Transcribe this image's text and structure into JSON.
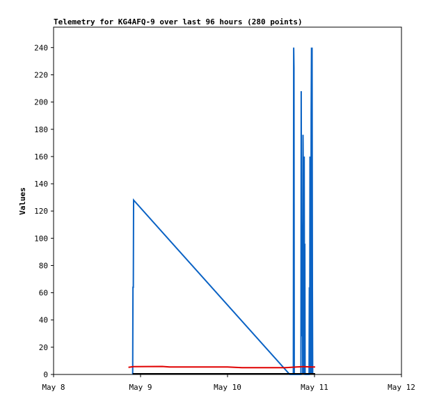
{
  "chart_data": {
    "type": "line",
    "title": "Telemetry for KG4AFQ-9 over last 96 hours (280 points)",
    "xlabel": "",
    "ylabel": "Values",
    "x_axis": {
      "type": "date",
      "range": [
        "2024-05-08T00:00",
        "2024-05-12T00:00"
      ],
      "ticks": [
        {
          "value": "2024-05-08T00:00",
          "label": "May 8"
        },
        {
          "value": "2024-05-09T00:00",
          "label": "May 9"
        },
        {
          "value": "2024-05-10T00:00",
          "label": "May 10"
        },
        {
          "value": "2024-05-11T00:00",
          "label": "May 11"
        },
        {
          "value": "2024-05-12T00:00",
          "label": "May 12"
        }
      ]
    },
    "ylim": [
      0,
      255
    ],
    "y_ticks": [
      0,
      20,
      40,
      60,
      80,
      100,
      120,
      140,
      160,
      180,
      200,
      220,
      240
    ],
    "grid": false,
    "series": [
      {
        "color": "#0a62c4",
        "points": [
          [
            "2024-05-08T21:50",
            0
          ],
          [
            "2024-05-08T21:55",
            64
          ],
          [
            "2024-05-08T22:00",
            64
          ],
          [
            "2024-05-08T22:05",
            128
          ],
          [
            "2024-05-10T17:10",
            0
          ],
          [
            "2024-05-10T18:10",
            0
          ],
          [
            "2024-05-10T18:15",
            240
          ],
          [
            "2024-05-10T18:20",
            225
          ],
          [
            "2024-05-10T18:25",
            0
          ],
          [
            "2024-05-10T20:15",
            0
          ],
          [
            "2024-05-10T20:20",
            208
          ],
          [
            "2024-05-10T20:25",
            112
          ],
          [
            "2024-05-10T20:30",
            84
          ],
          [
            "2024-05-10T20:35",
            28
          ],
          [
            "2024-05-10T20:40",
            64
          ],
          [
            "2024-05-10T20:45",
            0
          ],
          [
            "2024-05-10T20:50",
            176
          ],
          [
            "2024-05-10T20:55",
            144
          ],
          [
            "2024-05-10T21:00",
            0
          ],
          [
            "2024-05-10T21:05",
            64
          ],
          [
            "2024-05-10T21:10",
            160
          ],
          [
            "2024-05-10T21:15",
            0
          ],
          [
            "2024-05-10T21:20",
            96
          ],
          [
            "2024-05-10T21:25",
            0
          ],
          [
            "2024-05-10T22:30",
            0
          ],
          [
            "2024-05-10T22:35",
            64
          ],
          [
            "2024-05-10T22:40",
            0
          ],
          [
            "2024-05-10T22:45",
            160
          ],
          [
            "2024-05-10T22:50",
            80
          ],
          [
            "2024-05-10T22:55",
            0
          ],
          [
            "2024-05-10T23:00",
            64
          ],
          [
            "2024-05-10T23:05",
            192
          ],
          [
            "2024-05-10T23:10",
            240
          ],
          [
            "2024-05-10T23:15",
            0
          ],
          [
            "2024-05-10T23:20",
            240
          ],
          [
            "2024-05-10T23:25",
            64
          ],
          [
            "2024-05-10T23:30",
            0
          ]
        ]
      },
      {
        "color": "#e00000",
        "points": [
          [
            "2024-05-08T20:40",
            5.2
          ],
          [
            "2024-05-08T22:00",
            5.8
          ],
          [
            "2024-05-09T06:00",
            5.9
          ],
          [
            "2024-05-09T08:00",
            5.5
          ],
          [
            "2024-05-10T00:00",
            5.5
          ],
          [
            "2024-05-10T04:00",
            5.0
          ],
          [
            "2024-05-10T16:00",
            5.0
          ],
          [
            "2024-05-10T19:00",
            5.5
          ],
          [
            "2024-05-10T21:00",
            5.8
          ],
          [
            "2024-05-10T23:00",
            5.5
          ],
          [
            "2024-05-11T00:10",
            5.5
          ]
        ]
      },
      {
        "color": "#000000",
        "points": [
          [
            "2024-05-08T21:50",
            0.5
          ],
          [
            "2024-05-11T00:10",
            0.5
          ]
        ]
      }
    ]
  }
}
